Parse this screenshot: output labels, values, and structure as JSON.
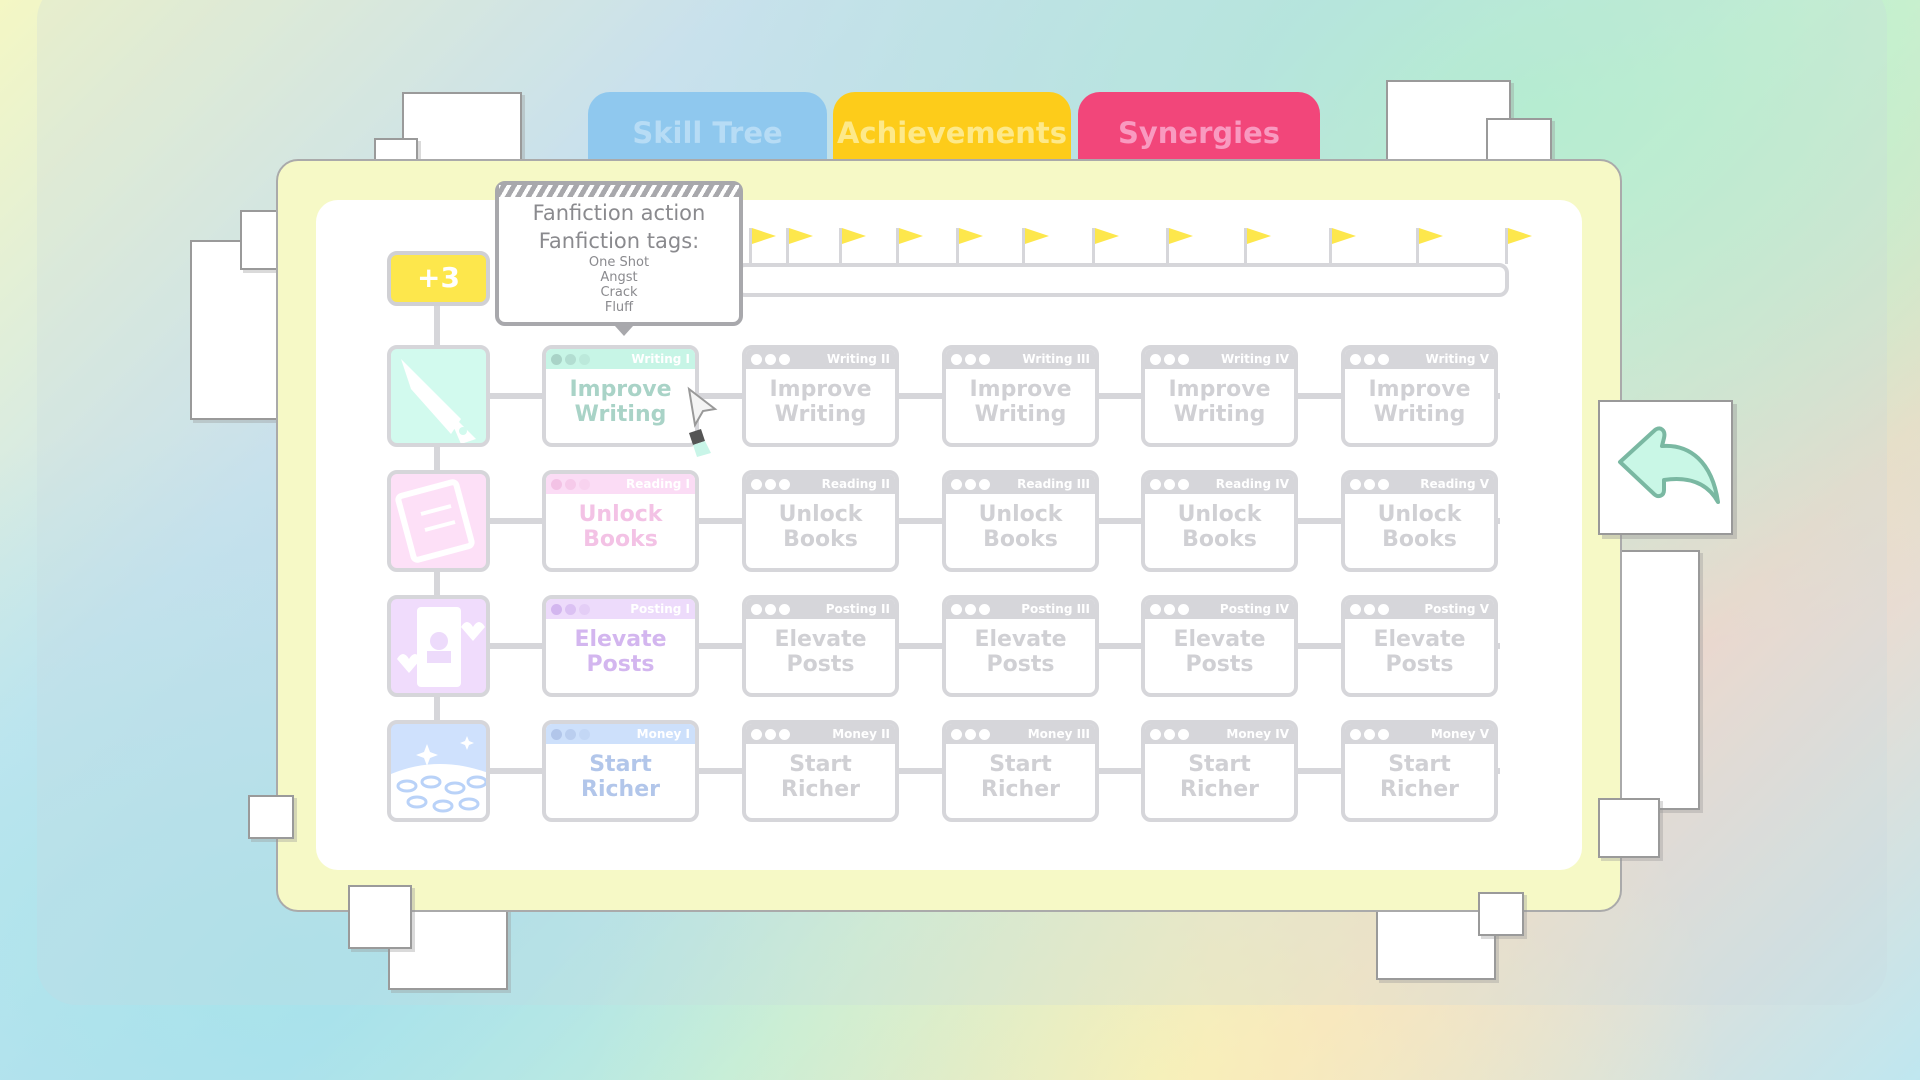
{
  "tabs": [
    {
      "label": "Skill Tree",
      "bg": "#8fc8ee",
      "fg": "#b7dcf5"
    },
    {
      "label": "Achievements",
      "bg": "#fdcc1a",
      "fg": "#fde98a"
    },
    {
      "label": "Synergies",
      "bg": "#f2467a",
      "fg": "#f99ac0"
    }
  ],
  "points_badge": "+3",
  "tooltip": {
    "title": "Fanfiction action",
    "subtitle": "Fanfiction tags:",
    "tags": [
      "One Shot",
      "Angst",
      "Crack",
      "Fluff"
    ]
  },
  "rows": [
    {
      "category": "writing",
      "icon": "fountain-pen-icon",
      "name": "Improve Writing",
      "line1": "Improve",
      "line2": "Writing",
      "levels": [
        "Writing I",
        "Writing II",
        "Writing III",
        "Writing IV",
        "Writing V"
      ],
      "color": "#d2faee",
      "header": "#c7f5e6",
      "text": "#a9d3c7"
    },
    {
      "category": "reading",
      "icon": "book-icon",
      "name": "Unlock Books",
      "line1": "Unlock",
      "line2": "Books",
      "levels": [
        "Reading I",
        "Reading II",
        "Reading III",
        "Reading IV",
        "Reading V"
      ],
      "color": "#fde0f7",
      "header": "#fbdcf5",
      "text": "#f3c2e5"
    },
    {
      "category": "posting",
      "icon": "phone-post-icon",
      "name": "Elevate Posts",
      "line1": "Elevate",
      "line2": "Posts",
      "levels": [
        "Posting I",
        "Posting II",
        "Posting III",
        "Posting IV",
        "Posting V"
      ],
      "color": "#f0dcfc",
      "header": "#eddbfb",
      "text": "#d3b6ef"
    },
    {
      "category": "money",
      "icon": "coins-icon",
      "name": "Start Richer",
      "line1": "Start",
      "line2": "Richer",
      "levels": [
        "Money I",
        "Money II",
        "Money III",
        "Money IV",
        "Money V"
      ],
      "color": "#cfe1fd",
      "header": "#cde0fb",
      "text": "#b2c6ea"
    }
  ]
}
